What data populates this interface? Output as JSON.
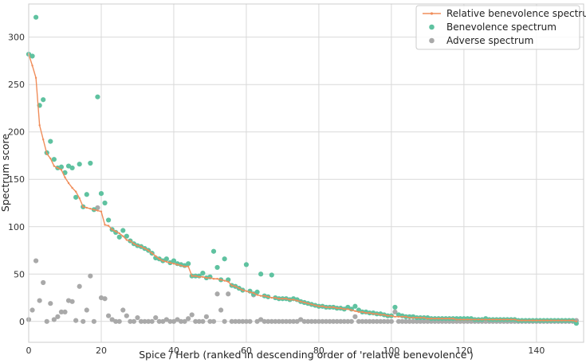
{
  "chart_data": {
    "type": "scatter",
    "title": "",
    "xlabel": "Spice / Herb (ranked in descending order of 'relative benevolence')",
    "ylabel": "Spectrum score",
    "xlim": [
      0,
      153
    ],
    "ylim": [
      -22,
      335
    ],
    "xticks": [
      0,
      20,
      40,
      60,
      80,
      100,
      120,
      140
    ],
    "yticks": [
      0,
      50,
      100,
      150,
      200,
      250,
      300
    ],
    "grid": true,
    "legend_position": "top-right",
    "colors": {
      "relative": "#f08d5a",
      "benevolence": "#5fc2a0",
      "adverse": "#a9a9a9"
    },
    "series": [
      {
        "name": "Relative benevolence spectrum",
        "style": "line",
        "x": [
          0,
          1,
          2,
          3,
          4,
          5,
          6,
          7,
          8,
          9,
          10,
          11,
          12,
          13,
          14,
          15,
          16,
          17,
          18,
          19,
          20,
          21,
          22,
          23,
          24,
          25,
          26,
          27,
          28,
          29,
          30,
          31,
          32,
          33,
          34,
          35,
          36,
          37,
          38,
          39,
          40,
          41,
          42,
          43,
          44,
          45,
          46,
          47,
          48,
          49,
          50,
          51,
          52,
          53,
          54,
          55,
          56,
          57,
          58,
          59,
          60,
          61,
          62,
          63,
          64,
          65,
          66,
          67,
          68,
          69,
          70,
          71,
          72,
          73,
          74,
          75,
          76,
          77,
          78,
          79,
          80,
          81,
          82,
          83,
          84,
          85,
          86,
          87,
          88,
          89,
          90,
          91,
          92,
          93,
          94,
          95,
          96,
          97,
          98,
          99,
          100,
          101,
          102,
          103,
          104,
          105,
          106,
          107,
          108,
          109,
          110,
          111,
          112,
          113,
          114,
          115,
          116,
          117,
          118,
          119,
          120,
          121,
          122,
          123,
          124,
          125,
          126,
          127,
          128,
          129,
          130,
          131,
          132,
          133,
          134,
          135,
          136,
          137,
          138,
          139,
          140,
          141,
          142,
          143,
          144,
          145,
          146,
          147,
          148,
          149,
          150,
          151
        ],
        "values": [
          282,
          270,
          257,
          207,
          192,
          177,
          172,
          164,
          162,
          160,
          152,
          146,
          141,
          137,
          130,
          121,
          120,
          119,
          118,
          117,
          116,
          102,
          101,
          97,
          95,
          93,
          90,
          86,
          85,
          82,
          80,
          79,
          77,
          75,
          72,
          69,
          66,
          64,
          63,
          62,
          61,
          60,
          59,
          58,
          58,
          48,
          48,
          47,
          47,
          46,
          46,
          45,
          45,
          44,
          43,
          42,
          38,
          37,
          35,
          33,
          32,
          31,
          30,
          28,
          27,
          27,
          26,
          25,
          25,
          24,
          24,
          24,
          23,
          23,
          22,
          21,
          20,
          19,
          18,
          17,
          16,
          16,
          15,
          15,
          15,
          14,
          14,
          13,
          13,
          12,
          11,
          10,
          10,
          9,
          9,
          8,
          8,
          7,
          7,
          6,
          6,
          5,
          5,
          5,
          5,
          4,
          4,
          4,
          4,
          4,
          3,
          3,
          3,
          3,
          3,
          3,
          3,
          3,
          2,
          2,
          2,
          2,
          2,
          2,
          2,
          2,
          2,
          2,
          2,
          2,
          2,
          2,
          2,
          2,
          2,
          1,
          1,
          1,
          1,
          1,
          1,
          1,
          1,
          1,
          1,
          1,
          1,
          1,
          1,
          1,
          1,
          0
        ]
      },
      {
        "name": "Benevolence spectrum",
        "style": "points",
        "x": [
          0,
          1,
          2,
          3,
          4,
          5,
          6,
          7,
          8,
          9,
          10,
          11,
          12,
          13,
          14,
          15,
          16,
          17,
          18,
          19,
          20,
          21,
          22,
          23,
          24,
          25,
          26,
          27,
          28,
          29,
          30,
          31,
          32,
          33,
          34,
          35,
          36,
          37,
          38,
          39,
          40,
          41,
          42,
          43,
          44,
          45,
          46,
          47,
          48,
          49,
          50,
          51,
          52,
          53,
          54,
          55,
          56,
          57,
          58,
          59,
          60,
          61,
          62,
          63,
          64,
          65,
          66,
          67,
          68,
          69,
          70,
          71,
          72,
          73,
          74,
          75,
          76,
          77,
          78,
          79,
          80,
          81,
          82,
          83,
          84,
          85,
          86,
          87,
          88,
          89,
          90,
          91,
          92,
          93,
          94,
          95,
          96,
          97,
          98,
          99,
          100,
          101,
          102,
          103,
          104,
          105,
          106,
          107,
          108,
          109,
          110,
          111,
          112,
          113,
          114,
          115,
          116,
          117,
          118,
          119,
          120,
          121,
          122,
          123,
          124,
          125,
          126,
          127,
          128,
          129,
          130,
          131,
          132,
          133,
          134,
          135,
          136,
          137,
          138,
          139,
          140,
          141,
          142,
          143,
          144,
          145,
          146,
          147,
          148,
          149,
          150,
          151
        ],
        "values": [
          282,
          280,
          321,
          228,
          234,
          178,
          190,
          171,
          162,
          163,
          157,
          164,
          162,
          131,
          166,
          121,
          134,
          167,
          118,
          237,
          135,
          125,
          107,
          97,
          94,
          89,
          96,
          90,
          85,
          82,
          80,
          79,
          77,
          75,
          72,
          67,
          66,
          64,
          66,
          62,
          64,
          61,
          60,
          59,
          61,
          48,
          48,
          48,
          51,
          46,
          47,
          74,
          57,
          44,
          66,
          44,
          38,
          37,
          35,
          33,
          60,
          32,
          29,
          31,
          50,
          27,
          26,
          49,
          25,
          24,
          24,
          24,
          23,
          24,
          23,
          21,
          20,
          19,
          18,
          17,
          16,
          16,
          15,
          15,
          15,
          14,
          14,
          13,
          15,
          13,
          16,
          12,
          10,
          10,
          9,
          9,
          8,
          8,
          7,
          6,
          6,
          15,
          7,
          6,
          5,
          5,
          5,
          4,
          4,
          4,
          4,
          3,
          3,
          3,
          3,
          3,
          3,
          3,
          3,
          3,
          3,
          3,
          3,
          2,
          2,
          2,
          3,
          2,
          2,
          2,
          2,
          2,
          2,
          2,
          2,
          1,
          1,
          1,
          1,
          1,
          1,
          1,
          1,
          1,
          1,
          1,
          1,
          1,
          1,
          1,
          1,
          -2
        ]
      },
      {
        "name": "Adverse spectrum",
        "style": "points",
        "x": [
          0,
          1,
          2,
          3,
          4,
          5,
          6,
          7,
          8,
          9,
          10,
          11,
          12,
          13,
          14,
          15,
          16,
          17,
          18,
          19,
          20,
          21,
          22,
          23,
          24,
          25,
          26,
          27,
          28,
          29,
          30,
          31,
          32,
          33,
          34,
          35,
          36,
          37,
          38,
          39,
          40,
          41,
          42,
          43,
          44,
          45,
          46,
          47,
          48,
          49,
          50,
          51,
          52,
          53,
          54,
          55,
          56,
          57,
          58,
          59,
          60,
          61,
          62,
          63,
          64,
          65,
          66,
          67,
          68,
          69,
          70,
          71,
          72,
          73,
          74,
          75,
          76,
          77,
          78,
          79,
          80,
          81,
          82,
          83,
          84,
          85,
          86,
          87,
          88,
          89,
          90,
          91,
          92,
          93,
          94,
          95,
          96,
          97,
          98,
          99,
          100,
          101,
          102,
          103,
          104,
          105,
          106,
          107,
          108,
          109,
          110,
          111,
          112,
          113,
          114,
          115,
          116,
          117,
          118,
          119,
          120,
          121,
          122,
          123,
          124,
          125,
          126,
          127,
          128,
          129,
          130,
          131,
          132,
          133,
          134,
          135,
          136,
          137,
          138,
          139,
          140,
          141,
          142,
          143,
          144,
          145,
          146,
          147,
          148,
          149,
          150,
          151
        ],
        "values": [
          2,
          12,
          64,
          22,
          41,
          0,
          19,
          2,
          5,
          10,
          10,
          22,
          21,
          1,
          37,
          0,
          12,
          48,
          0,
          120,
          25,
          24,
          6,
          2,
          0,
          0,
          12,
          6,
          0,
          0,
          4,
          0,
          0,
          0,
          0,
          4,
          0,
          0,
          2,
          0,
          0,
          2,
          0,
          0,
          3,
          7,
          0,
          0,
          0,
          5,
          0,
          0,
          29,
          12,
          0,
          29,
          0,
          0,
          0,
          0,
          0,
          0,
          28,
          0,
          2,
          0,
          0,
          0,
          0,
          0,
          0,
          0,
          0,
          0,
          0,
          2,
          0,
          0,
          0,
          0,
          0,
          0,
          0,
          0,
          0,
          0,
          0,
          0,
          0,
          0,
          5,
          0,
          0,
          0,
          0,
          0,
          0,
          0,
          0,
          0,
          0,
          10,
          0,
          0,
          0,
          0,
          0,
          0,
          0,
          0,
          0,
          0,
          0,
          0,
          0,
          0,
          0,
          0,
          0,
          0,
          0,
          0,
          0,
          0,
          0,
          0,
          0,
          0,
          0,
          0,
          0,
          0,
          0,
          0,
          0,
          0,
          0,
          0,
          0,
          0,
          0,
          0,
          0,
          0,
          0,
          0,
          0,
          0,
          0,
          0,
          0,
          1
        ]
      }
    ]
  }
}
